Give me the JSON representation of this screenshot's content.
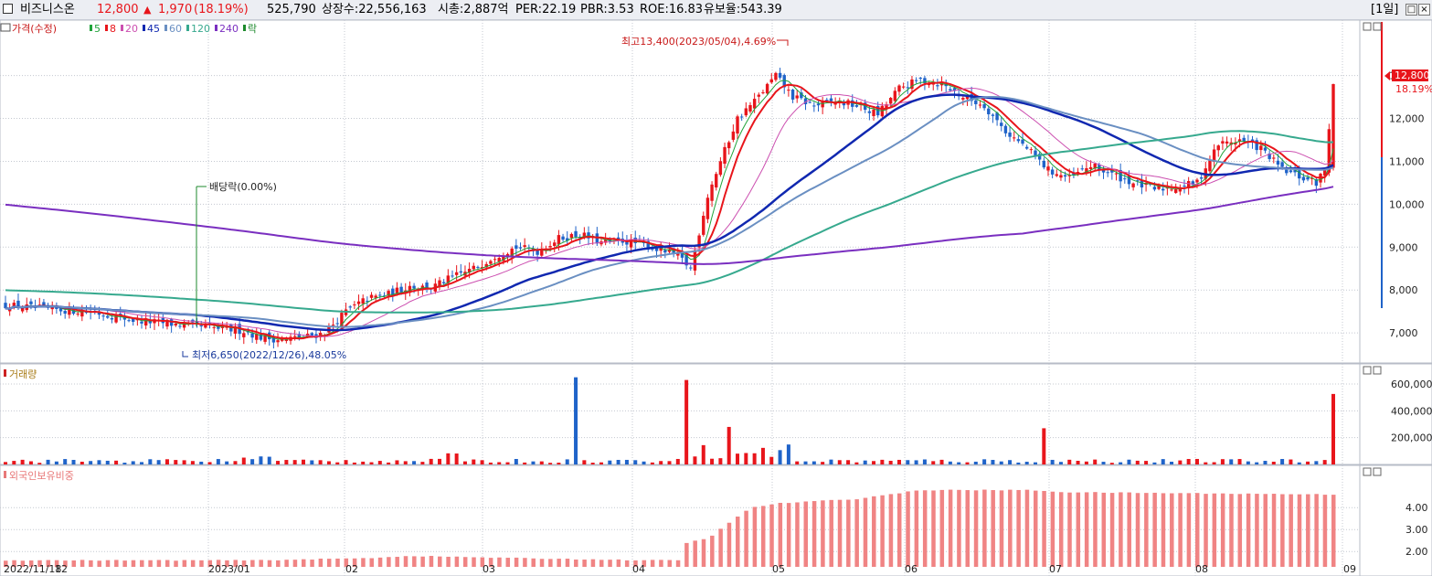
{
  "header": {
    "name": "비즈니스온",
    "price": "12,800",
    "change_arrow": "▲",
    "change": "1,970",
    "change_pct": "(18.19%)",
    "volume": "525,790",
    "listed": "상장수:22,556,163",
    "mcap": "시총:2,887억",
    "per": "PER:22.19",
    "pbr": "PBR:3.53",
    "roe": "ROE:16.83",
    "float": "유보율:543.39",
    "period": "[1일]",
    "colors": {
      "up": "#e8151b",
      "down": "#1f63c9"
    }
  },
  "chart_data": [
    {
      "type": "candlestick",
      "title": "",
      "legend": [
        {
          "label": "가격(수정)",
          "color": "#d8161c"
        },
        {
          "label": "5",
          "color": "#1fa33a"
        },
        {
          "label": "8",
          "color": "#e8151b"
        },
        {
          "label": "20",
          "color": "#cc4fb0"
        },
        {
          "label": "45",
          "color": "#1028b0"
        },
        {
          "label": "60",
          "color": "#6a8fc2"
        },
        {
          "label": "120",
          "color": "#36a98e"
        },
        {
          "label": "240",
          "color": "#7a2fc0"
        },
        {
          "label": "락",
          "color": "#1d8a2c"
        }
      ],
      "ylim": [
        6300,
        14100
      ],
      "y_ticks": [
        {
          "v": 7000,
          "l": "7,000"
        },
        {
          "v": 8000,
          "l": "8,000"
        },
        {
          "v": 9000,
          "l": "9,000"
        },
        {
          "v": 10000,
          "l": "10,000"
        },
        {
          "v": 11000,
          "l": "11,000"
        },
        {
          "v": 12000,
          "l": "12,000"
        },
        {
          "v": 13000,
          "l": "13,000"
        }
      ],
      "x_ticks": [
        "2022/11/18",
        "12",
        "2023/01",
        "02",
        "03",
        "04",
        "05",
        "06",
        "07",
        "08",
        "09"
      ],
      "price_path": [
        [
          0,
          7650
        ],
        [
          10,
          7550
        ],
        [
          20,
          7500
        ],
        [
          30,
          7300
        ],
        [
          40,
          7200
        ],
        [
          50,
          7100
        ],
        [
          56,
          7050
        ],
        [
          60,
          6900
        ],
        [
          64,
          6850
        ],
        [
          70,
          6900
        ],
        [
          75,
          7000
        ],
        [
          80,
          7500
        ],
        [
          85,
          7800
        ],
        [
          90,
          7900
        ],
        [
          95,
          8100
        ],
        [
          100,
          8050
        ],
        [
          105,
          8300
        ],
        [
          110,
          8500
        ],
        [
          115,
          8800
        ],
        [
          120,
          9000
        ],
        [
          125,
          8900
        ],
        [
          130,
          9200
        ],
        [
          135,
          9300
        ],
        [
          140,
          9100
        ],
        [
          145,
          9150
        ],
        [
          150,
          9050
        ],
        [
          155,
          8900
        ],
        [
          158,
          8800
        ],
        [
          161,
          8500
        ],
        [
          165,
          10200
        ],
        [
          168,
          11000
        ],
        [
          172,
          12000
        ],
        [
          176,
          12400
        ],
        [
          181,
          13000
        ],
        [
          185,
          12500
        ],
        [
          190,
          12300
        ],
        [
          195,
          12400
        ],
        [
          200,
          12300
        ],
        [
          205,
          12100
        ],
        [
          210,
          12700
        ],
        [
          215,
          12900
        ],
        [
          220,
          12800
        ],
        [
          225,
          12500
        ],
        [
          230,
          12300
        ],
        [
          235,
          11700
        ],
        [
          240,
          11300
        ],
        [
          245,
          10800
        ],
        [
          250,
          10600
        ],
        [
          255,
          10900
        ],
        [
          260,
          10700
        ],
        [
          265,
          10500
        ],
        [
          270,
          10350
        ],
        [
          275,
          10400
        ],
        [
          280,
          10500
        ],
        [
          285,
          11400
        ],
        [
          290,
          11500
        ],
        [
          295,
          11300
        ],
        [
          300,
          10800
        ],
        [
          305,
          10600
        ],
        [
          308,
          10500
        ],
        [
          310,
          10800
        ],
        [
          312,
          12800
        ]
      ],
      "ma_last": {
        "ma5": 10900,
        "ma8": 10850,
        "ma20": 10800,
        "ma45": 10850,
        "ma60": 11200,
        "ma120": 10950,
        "ma240": 9350
      },
      "high_label": "최고13,400(2023/05/04),4.69%",
      "low_label": "최저6,650(2022/12/26),48.05%",
      "event_label": "배당락(0.00%)",
      "last_price_label": "12,800",
      "last_pct_label": "18.19%"
    },
    {
      "type": "bar",
      "title": "거래량",
      "ylim": [
        0,
        700000
      ],
      "y_ticks": [
        {
          "v": 200000,
          "l": "200,000"
        },
        {
          "v": 400000,
          "l": "400,000"
        },
        {
          "v": 600000,
          "l": "600,000"
        }
      ],
      "spikes": [
        {
          "i": 134,
          "value": 650000,
          "up": false
        },
        {
          "i": 161,
          "value": 630000,
          "up": true
        },
        {
          "i": 170,
          "value": 280000,
          "up": true
        },
        {
          "i": 245,
          "value": 270000,
          "up": true
        },
        {
          "i": 312,
          "value": 525790,
          "up": true
        }
      ]
    },
    {
      "type": "bar",
      "title": "외국인보유비중",
      "ylim": [
        1.3,
        5.3
      ],
      "y_ticks": [
        {
          "v": 2,
          "l": "2.00"
        },
        {
          "v": 3,
          "l": "3.00"
        },
        {
          "v": 4,
          "l": "4.00"
        }
      ],
      "path": [
        [
          0,
          1.6
        ],
        [
          60,
          1.6
        ],
        [
          85,
          1.7
        ],
        [
          95,
          1.8
        ],
        [
          120,
          1.7
        ],
        [
          150,
          1.6
        ],
        [
          158,
          1.6
        ],
        [
          160,
          2.4
        ],
        [
          165,
          2.6
        ],
        [
          170,
          3.3
        ],
        [
          175,
          4.0
        ],
        [
          182,
          4.2
        ],
        [
          200,
          4.4
        ],
        [
          215,
          4.8
        ],
        [
          240,
          4.8
        ],
        [
          250,
          4.7
        ],
        [
          312,
          4.6
        ]
      ]
    }
  ]
}
